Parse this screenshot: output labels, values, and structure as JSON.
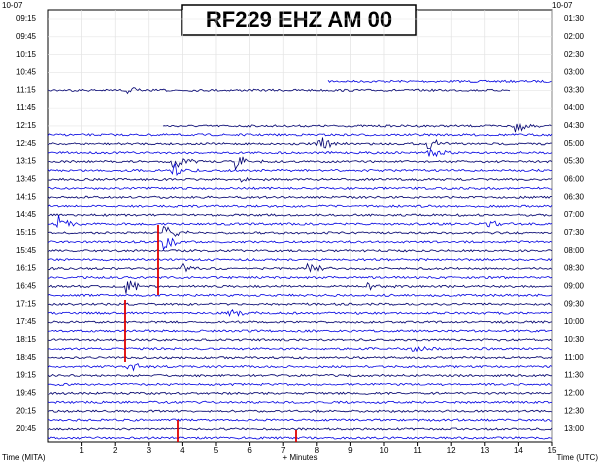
{
  "chart_data": {
    "type": "helicorder",
    "title": "RF229 EHZ AM 00",
    "date_left": "10-07",
    "date_right": "10-07",
    "x_label_left": "Time (MITA)",
    "x_label_center": "+ Minutes",
    "x_label_right": "Time (UTC)",
    "xlim": [
      0,
      15
    ],
    "xticks": [
      1,
      2,
      3,
      4,
      5,
      6,
      7,
      8,
      9,
      10,
      11,
      12,
      13,
      14,
      15
    ],
    "left_times": [
      "09:15",
      "09:45",
      "10:15",
      "10:45",
      "11:15",
      "11:45",
      "12:15",
      "12:45",
      "13:15",
      "13:45",
      "14:15",
      "14:45",
      "15:15",
      "15:45",
      "16:15",
      "16:45",
      "17:15",
      "17:45",
      "18:15",
      "18:45",
      "19:15",
      "19:45",
      "20:15",
      "20:45"
    ],
    "right_times": [
      "01:30",
      "02:00",
      "02:30",
      "03:00",
      "03:30",
      "04:00",
      "04:30",
      "05:00",
      "05:30",
      "06:00",
      "06:30",
      "07:00",
      "07:30",
      "08:00",
      "08:30",
      "09:00",
      "09:30",
      "10:00",
      "10:30",
      "11:00",
      "11:30",
      "12:00",
      "12:30",
      "13:00"
    ],
    "grid": true
  }
}
